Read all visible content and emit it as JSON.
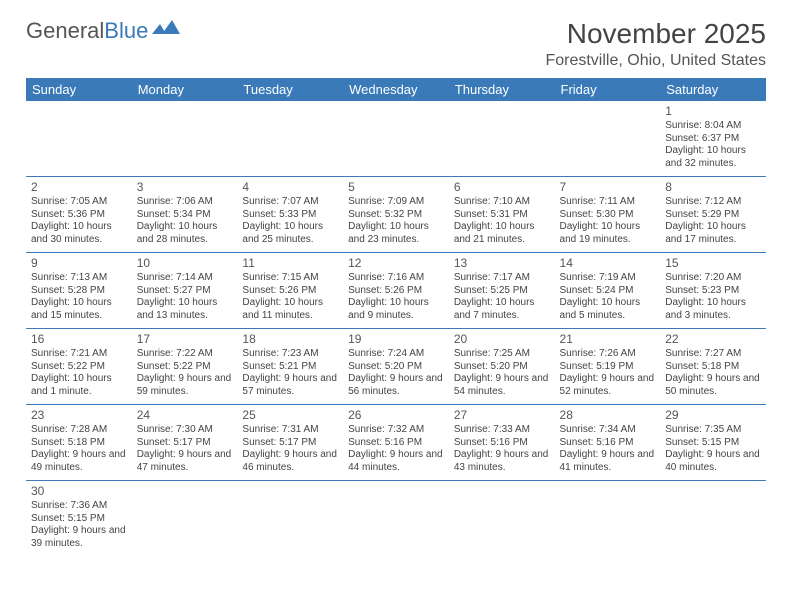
{
  "logo": {
    "text1": "General",
    "text2": "Blue"
  },
  "title": "November 2025",
  "location": "Forestville, Ohio, United States",
  "colors": {
    "header_bg": "#3a7ab8",
    "header_fg": "#ffffff",
    "border": "#3a7ab8",
    "text": "#444444"
  },
  "weekdays": [
    "Sunday",
    "Monday",
    "Tuesday",
    "Wednesday",
    "Thursday",
    "Friday",
    "Saturday"
  ],
  "weeks": [
    [
      null,
      null,
      null,
      null,
      null,
      null,
      {
        "n": "1",
        "sr": "Sunrise: 8:04 AM",
        "ss": "Sunset: 6:37 PM",
        "dl": "Daylight: 10 hours and 32 minutes."
      }
    ],
    [
      {
        "n": "2",
        "sr": "Sunrise: 7:05 AM",
        "ss": "Sunset: 5:36 PM",
        "dl": "Daylight: 10 hours and 30 minutes."
      },
      {
        "n": "3",
        "sr": "Sunrise: 7:06 AM",
        "ss": "Sunset: 5:34 PM",
        "dl": "Daylight: 10 hours and 28 minutes."
      },
      {
        "n": "4",
        "sr": "Sunrise: 7:07 AM",
        "ss": "Sunset: 5:33 PM",
        "dl": "Daylight: 10 hours and 25 minutes."
      },
      {
        "n": "5",
        "sr": "Sunrise: 7:09 AM",
        "ss": "Sunset: 5:32 PM",
        "dl": "Daylight: 10 hours and 23 minutes."
      },
      {
        "n": "6",
        "sr": "Sunrise: 7:10 AM",
        "ss": "Sunset: 5:31 PM",
        "dl": "Daylight: 10 hours and 21 minutes."
      },
      {
        "n": "7",
        "sr": "Sunrise: 7:11 AM",
        "ss": "Sunset: 5:30 PM",
        "dl": "Daylight: 10 hours and 19 minutes."
      },
      {
        "n": "8",
        "sr": "Sunrise: 7:12 AM",
        "ss": "Sunset: 5:29 PM",
        "dl": "Daylight: 10 hours and 17 minutes."
      }
    ],
    [
      {
        "n": "9",
        "sr": "Sunrise: 7:13 AM",
        "ss": "Sunset: 5:28 PM",
        "dl": "Daylight: 10 hours and 15 minutes."
      },
      {
        "n": "10",
        "sr": "Sunrise: 7:14 AM",
        "ss": "Sunset: 5:27 PM",
        "dl": "Daylight: 10 hours and 13 minutes."
      },
      {
        "n": "11",
        "sr": "Sunrise: 7:15 AM",
        "ss": "Sunset: 5:26 PM",
        "dl": "Daylight: 10 hours and 11 minutes."
      },
      {
        "n": "12",
        "sr": "Sunrise: 7:16 AM",
        "ss": "Sunset: 5:26 PM",
        "dl": "Daylight: 10 hours and 9 minutes."
      },
      {
        "n": "13",
        "sr": "Sunrise: 7:17 AM",
        "ss": "Sunset: 5:25 PM",
        "dl": "Daylight: 10 hours and 7 minutes."
      },
      {
        "n": "14",
        "sr": "Sunrise: 7:19 AM",
        "ss": "Sunset: 5:24 PM",
        "dl": "Daylight: 10 hours and 5 minutes."
      },
      {
        "n": "15",
        "sr": "Sunrise: 7:20 AM",
        "ss": "Sunset: 5:23 PM",
        "dl": "Daylight: 10 hours and 3 minutes."
      }
    ],
    [
      {
        "n": "16",
        "sr": "Sunrise: 7:21 AM",
        "ss": "Sunset: 5:22 PM",
        "dl": "Daylight: 10 hours and 1 minute."
      },
      {
        "n": "17",
        "sr": "Sunrise: 7:22 AM",
        "ss": "Sunset: 5:22 PM",
        "dl": "Daylight: 9 hours and 59 minutes."
      },
      {
        "n": "18",
        "sr": "Sunrise: 7:23 AM",
        "ss": "Sunset: 5:21 PM",
        "dl": "Daylight: 9 hours and 57 minutes."
      },
      {
        "n": "19",
        "sr": "Sunrise: 7:24 AM",
        "ss": "Sunset: 5:20 PM",
        "dl": "Daylight: 9 hours and 56 minutes."
      },
      {
        "n": "20",
        "sr": "Sunrise: 7:25 AM",
        "ss": "Sunset: 5:20 PM",
        "dl": "Daylight: 9 hours and 54 minutes."
      },
      {
        "n": "21",
        "sr": "Sunrise: 7:26 AM",
        "ss": "Sunset: 5:19 PM",
        "dl": "Daylight: 9 hours and 52 minutes."
      },
      {
        "n": "22",
        "sr": "Sunrise: 7:27 AM",
        "ss": "Sunset: 5:18 PM",
        "dl": "Daylight: 9 hours and 50 minutes."
      }
    ],
    [
      {
        "n": "23",
        "sr": "Sunrise: 7:28 AM",
        "ss": "Sunset: 5:18 PM",
        "dl": "Daylight: 9 hours and 49 minutes."
      },
      {
        "n": "24",
        "sr": "Sunrise: 7:30 AM",
        "ss": "Sunset: 5:17 PM",
        "dl": "Daylight: 9 hours and 47 minutes."
      },
      {
        "n": "25",
        "sr": "Sunrise: 7:31 AM",
        "ss": "Sunset: 5:17 PM",
        "dl": "Daylight: 9 hours and 46 minutes."
      },
      {
        "n": "26",
        "sr": "Sunrise: 7:32 AM",
        "ss": "Sunset: 5:16 PM",
        "dl": "Daylight: 9 hours and 44 minutes."
      },
      {
        "n": "27",
        "sr": "Sunrise: 7:33 AM",
        "ss": "Sunset: 5:16 PM",
        "dl": "Daylight: 9 hours and 43 minutes."
      },
      {
        "n": "28",
        "sr": "Sunrise: 7:34 AM",
        "ss": "Sunset: 5:16 PM",
        "dl": "Daylight: 9 hours and 41 minutes."
      },
      {
        "n": "29",
        "sr": "Sunrise: 7:35 AM",
        "ss": "Sunset: 5:15 PM",
        "dl": "Daylight: 9 hours and 40 minutes."
      }
    ],
    [
      {
        "n": "30",
        "sr": "Sunrise: 7:36 AM",
        "ss": "Sunset: 5:15 PM",
        "dl": "Daylight: 9 hours and 39 minutes."
      },
      null,
      null,
      null,
      null,
      null,
      null
    ]
  ]
}
